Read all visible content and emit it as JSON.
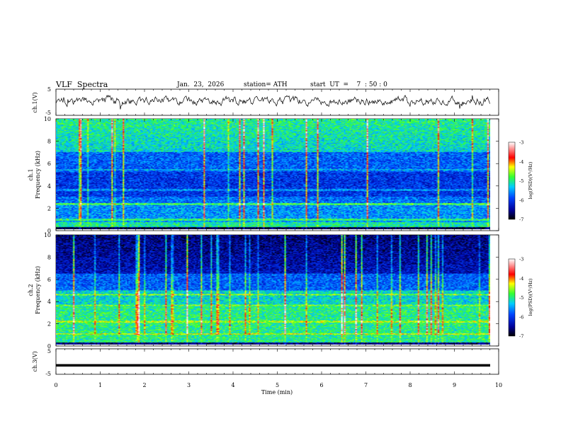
{
  "header": {
    "title": "VLF  Spectra",
    "date": "Jan.  23,  2026",
    "station": "station= ATH",
    "start_ut": "start  UT  =    7  : 50 : 0"
  },
  "chart_data": [
    {
      "type": "line",
      "panel": "ch1-waveform",
      "ylabel": "ch.1(V)",
      "ylim": [
        -5,
        5
      ],
      "y_ticks": [
        "5",
        "-5"
      ],
      "xlim": [
        0,
        10
      ],
      "note_level": 0.5
    },
    {
      "type": "heatmap",
      "panel": "ch1-spectrogram",
      "ylabel_line1": "ch.1",
      "ylabel_line2": "Frequency  (kHz)",
      "ylim": [
        0,
        10
      ],
      "y_ticks": [
        "0",
        "2",
        "4",
        "6",
        "8",
        "10"
      ],
      "xlim": [
        0,
        9.8
      ],
      "colorbar": {
        "label": "log(PSD)(V²/Hz)",
        "range": [
          -7,
          -3
        ],
        "ticks": [
          "-3",
          "-4",
          "-5",
          "-6",
          "-7"
        ]
      }
    },
    {
      "type": "heatmap",
      "panel": "ch2-spectrogram",
      "ylabel_line1": "ch.2",
      "ylabel_line2": "Frequency  (kHz)",
      "ylim": [
        0,
        10
      ],
      "y_ticks": [
        "0",
        "2",
        "4",
        "6",
        "8",
        "10"
      ],
      "xlim": [
        0,
        9.8
      ],
      "colorbar": {
        "label": "log(PSD)(V²/Hz)",
        "range": [
          -7,
          -3
        ],
        "ticks": [
          "-3",
          "-4",
          "-5",
          "-6",
          "-7"
        ]
      }
    },
    {
      "type": "line",
      "panel": "ch3-waveform",
      "ylabel": "ch.3(V)",
      "ylim": [
        -5,
        5
      ],
      "y_ticks": [
        "5",
        "-5"
      ],
      "xlim": [
        0,
        10
      ],
      "level": -1.5
    }
  ],
  "x_axis": {
    "label": "Time  (min)",
    "ticks": [
      "0",
      "1",
      "2",
      "3",
      "4",
      "5",
      "6",
      "7",
      "8",
      "9",
      "10"
    ],
    "range": [
      0,
      10
    ]
  },
  "colors": {
    "spectrogram_dark": "#000033",
    "spectrogram_blue": "#0033cc",
    "spectrogram_cyan": "#00ccff",
    "spectrogram_green": "#33ff33",
    "spectrogram_yellow": "#ffff00",
    "spectrogram_red": "#ff0000"
  }
}
